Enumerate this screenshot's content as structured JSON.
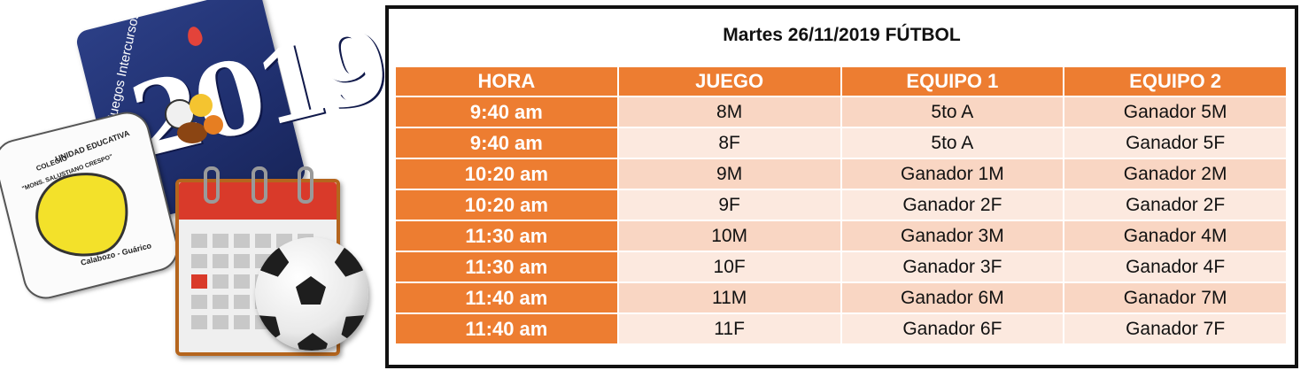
{
  "logo": {
    "card_text": "Juegos Intercursos",
    "card_year": "2019",
    "badge_lines": [
      "UNIDAD EDUCATIVA",
      "COLEGIO",
      "\"MONS. SALUSTIANO CRESPO\"",
      "Calabozo - Guárico"
    ]
  },
  "schedule": {
    "title": "Martes 26/11/2019 FÚTBOL",
    "columns": [
      "HORA",
      "JUEGO",
      "EQUIPO 1",
      "EQUIPO 2"
    ],
    "rows": [
      {
        "hora": "9:40 am",
        "juego": "8M",
        "equipo1": "5to A",
        "equipo2": "Ganador  5M"
      },
      {
        "hora": "9:40 am",
        "juego": "8F",
        "equipo1": "5to A",
        "equipo2": "Ganador  5F"
      },
      {
        "hora": "10:20 am",
        "juego": "9M",
        "equipo1": "Ganador 1M",
        "equipo2": "Ganador  2M"
      },
      {
        "hora": "10:20 am",
        "juego": "9F",
        "equipo1": "Ganador  2F",
        "equipo2": "Ganador  2F"
      },
      {
        "hora": "11:30 am",
        "juego": "10M",
        "equipo1": "Ganador  3M",
        "equipo2": "Ganador  4M"
      },
      {
        "hora": "11:30 am",
        "juego": "10F",
        "equipo1": "Ganador  3F",
        "equipo2": "Ganador  4F"
      },
      {
        "hora": "11:40 am",
        "juego": "11M",
        "equipo1": "Ganador  6M",
        "equipo2": "Ganador  7M"
      },
      {
        "hora": "11:40 am",
        "juego": "11F",
        "equipo1": "Ganador  6F",
        "equipo2": "Ganador  7F"
      }
    ]
  },
  "colors": {
    "header_orange": "#ed7d31",
    "row_light": "#f9d6c3",
    "row_lighter": "#fce9df",
    "card_blue": "#2c3f86",
    "calendar_red": "#d93a2a"
  },
  "icons": [
    "juegos-intercursos-logo",
    "school-badge-logo",
    "calendar-icon",
    "soccer-ball-icon"
  ]
}
